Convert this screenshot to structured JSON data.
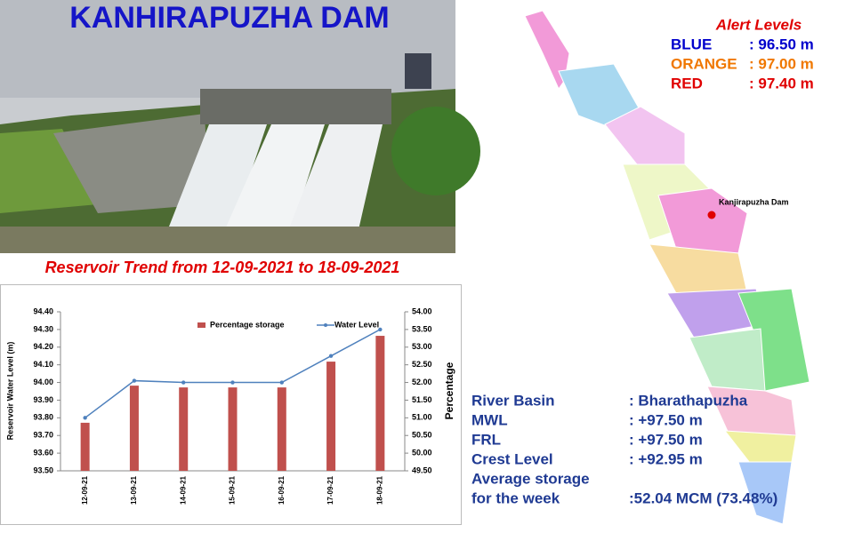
{
  "title": "KANHIRAPUZHA DAM",
  "alert_levels": {
    "title": "Alert Levels",
    "rows": [
      {
        "name": "BLUE",
        "value": ": 96.50 m",
        "color": "#0000cc"
      },
      {
        "name": "ORANGE",
        "value": ": 97.00 m",
        "color": "#f07800"
      },
      {
        "name": "RED",
        "value": ": 97.40 m",
        "color": "#e00000"
      }
    ]
  },
  "map": {
    "label": "Kanjirapuzha Dam"
  },
  "info": {
    "rows": [
      {
        "label": "River Basin",
        "value": ": Bharathapuzha"
      },
      {
        "label": "MWL",
        "value": ": +97.50 m"
      },
      {
        "label": "FRL",
        "value": ": +97.50 m"
      },
      {
        "label": "Crest Level",
        "value": ": +92.95 m"
      },
      {
        "label": [
          "Average storage",
          "for the week"
        ],
        "value": ":52.04 MCM (73.48%)"
      }
    ]
  },
  "chart_data": {
    "type": "bar",
    "title": "Reservoir Trend from 12-09-2021 to 18-09-2021",
    "y_label": "Reservoir Water Level (m)",
    "y2_label": "Percentage",
    "categories": [
      "12-09-21",
      "13-09-21",
      "14-09-21",
      "15-09-21",
      "16-09-21",
      "17-09-21",
      "18-09-21"
    ],
    "series": [
      {
        "name": "Percentage storage",
        "type": "bar",
        "axis": "y2",
        "color": "#c0504d",
        "values": [
          50.86,
          51.91,
          51.86,
          51.86,
          51.86,
          52.59,
          53.32
        ]
      },
      {
        "name": "Water Level",
        "type": "line",
        "color": "#4f81bd",
        "values": [
          93.8,
          94.01,
          94.0,
          94.0,
          94.0,
          94.15,
          94.3
        ]
      }
    ],
    "ylim": [
      93.5,
      94.4
    ],
    "yticks": [
      {
        "value": 93.5,
        "label": "93.50"
      },
      {
        "value": 93.6,
        "label": "93.60"
      },
      {
        "value": 93.7,
        "label": "93.70"
      },
      {
        "value": 93.8,
        "label": "93.80"
      },
      {
        "value": 93.9,
        "label": "93.90"
      },
      {
        "value": 94.0,
        "label": "94.00"
      },
      {
        "value": 94.1,
        "label": "94.10"
      },
      {
        "value": 94.2,
        "label": "94.20"
      },
      {
        "value": 94.3,
        "label": "94.30"
      },
      {
        "value": 94.4,
        "label": "94.40"
      }
    ],
    "y2lim": [
      49.5,
      54.0
    ],
    "y2ticks": [
      {
        "value": 49.5,
        "label": "49.50"
      },
      {
        "value": 50.0,
        "label": "50.00"
      },
      {
        "value": 50.5,
        "label": "50.50"
      },
      {
        "value": 51.0,
        "label": "51.00"
      },
      {
        "value": 51.5,
        "label": "51.50"
      },
      {
        "value": 52.0,
        "label": "52.00"
      },
      {
        "value": 52.5,
        "label": "52.50"
      },
      {
        "value": 53.0,
        "label": "53.00"
      },
      {
        "value": 53.5,
        "label": "53.50"
      },
      {
        "value": 54.0,
        "label": "54.00"
      }
    ],
    "grid": false
  }
}
